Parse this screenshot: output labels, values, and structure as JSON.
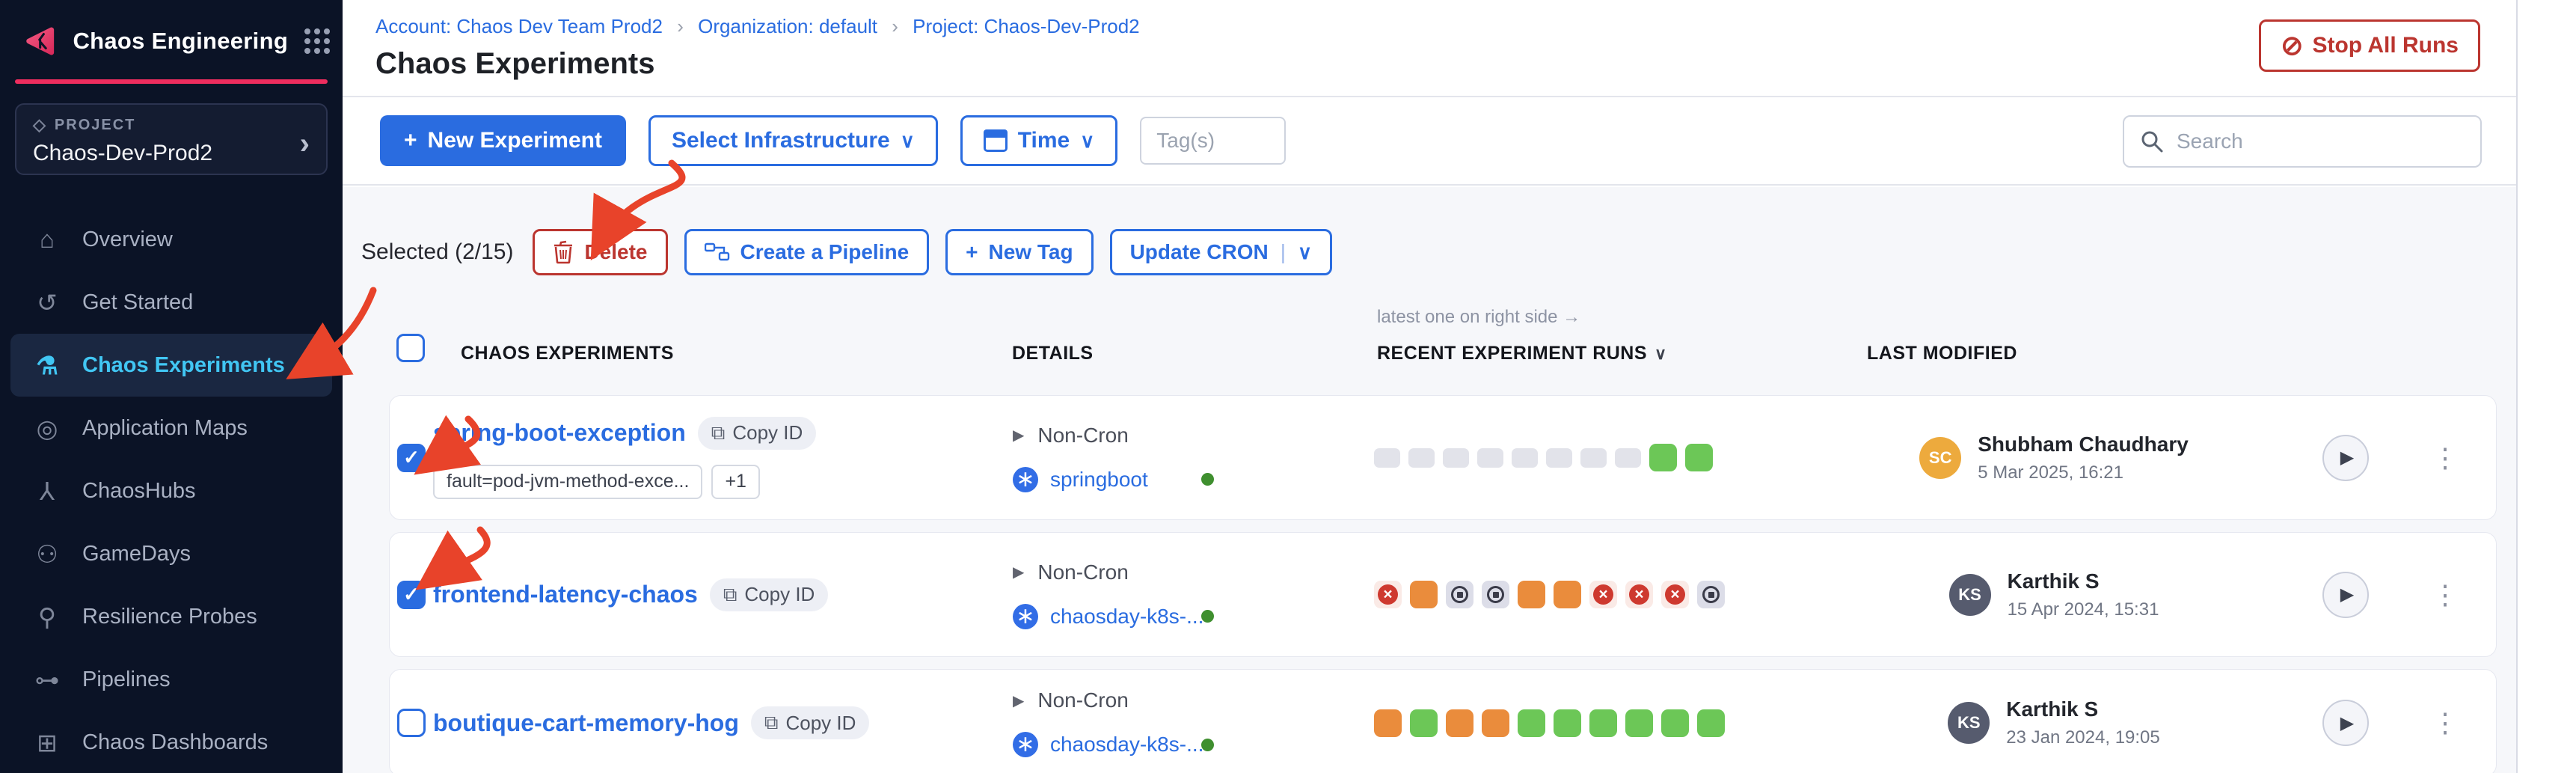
{
  "colors": {
    "primary_blue": "#2a6ce0",
    "sidebar_bg": "#0b1326",
    "pink_accent": "#ee2d5e",
    "active_nav": "#41c6f3",
    "danger_red": "#bb352f",
    "annotation_red": "#e8432a",
    "run_passed": "#6cc757",
    "run_running": "#ea8c3c",
    "run_failed": "#ce392f"
  },
  "icons": {
    "plus": "+",
    "chevron_down": "∨",
    "breadcrumb_sep": "›",
    "stop": "⊘",
    "copy": "⧉",
    "play": "▶",
    "menu_dots": "⋮",
    "check": "✓",
    "k8s_asterisk": "∗",
    "divider": "|",
    "project_cube": "◇",
    "project_chevron": "›",
    "cron_play": "▶"
  },
  "sidebar": {
    "product": "Chaos Engineering",
    "project_label": "PROJECT",
    "project_name": "Chaos-Dev-Prod2",
    "items": [
      {
        "name": "overview",
        "glyph": "⌂",
        "label": "Overview",
        "active": false
      },
      {
        "name": "get-started",
        "glyph": "↺",
        "label": "Get Started",
        "active": false
      },
      {
        "name": "chaos-experiments",
        "glyph": "⚗",
        "label": "Chaos Experiments",
        "active": true
      },
      {
        "name": "application-maps",
        "glyph": "◎",
        "label": "Application Maps",
        "active": false
      },
      {
        "name": "chaoshubs",
        "glyph": "⅄",
        "label": "ChaosHubs",
        "active": false
      },
      {
        "name": "gamedays",
        "glyph": "⚇",
        "label": "GameDays",
        "active": false
      },
      {
        "name": "resilience-probes",
        "glyph": "⚲",
        "label": "Resilience Probes",
        "active": false
      },
      {
        "name": "pipelines",
        "glyph": "⊶",
        "label": "Pipelines",
        "active": false
      },
      {
        "name": "chaos-dashboards",
        "glyph": "⊞",
        "label": "Chaos Dashboards",
        "active": false
      }
    ]
  },
  "breadcrumb": {
    "account": "Account: Chaos Dev Team Prod2",
    "organization": "Organization: default",
    "project": "Project: Chaos-Dev-Prod2"
  },
  "header": {
    "title": "Chaos Experiments",
    "stop_all_label": "Stop All Runs"
  },
  "toolbar": {
    "new_experiment_label": "New Experiment",
    "select_infrastructure_label": "Select Infrastructure",
    "time_label": "Time",
    "tags_placeholder": "Tag(s)",
    "search_placeholder": "Search"
  },
  "selection": {
    "label": "Selected (2/15)",
    "delete_label": "Delete",
    "create_pipeline_label": "Create a Pipeline",
    "new_tag_label": "New Tag",
    "update_cron_label": "Update CRON"
  },
  "table": {
    "runs_note": "latest one on right side →",
    "headers": {
      "experiments": "CHAOS EXPERIMENTS",
      "details": "DETAILS",
      "runs": "RECENT EXPERIMENT RUNS",
      "modified": "LAST MODIFIED"
    }
  },
  "rows": [
    {
      "name": "spring-boot-exception",
      "copy_label": "Copy ID",
      "checked": true,
      "tags": [
        "fault=pod-jvm-method-exce...",
        "+1"
      ],
      "cron": "Non-Cron",
      "infra": "springboot",
      "runs": [
        "none",
        "none",
        "none",
        "none",
        "none",
        "none",
        "none",
        "none",
        "passed",
        "passed"
      ],
      "modified_by": "Shubham Chaudhary",
      "initials": "SC",
      "avatar_color": "#edaa3d",
      "date": "5 Mar 2025, 16:21"
    },
    {
      "name": "frontend-latency-chaos",
      "copy_label": "Copy ID",
      "checked": true,
      "tags": [],
      "cron": "Non-Cron",
      "infra": "chaosday-k8s-...",
      "runs": [
        "failed",
        "running",
        "stopped",
        "stopped",
        "running",
        "running",
        "failed",
        "failed",
        "failed",
        "stopped"
      ],
      "modified_by": "Karthik S",
      "initials": "KS",
      "avatar_color": "#565b6e",
      "date": "15 Apr 2024, 15:31"
    },
    {
      "name": "boutique-cart-memory-hog",
      "copy_label": "Copy ID",
      "checked": false,
      "tags": [],
      "cron": "Non-Cron",
      "infra": "chaosday-k8s-...",
      "runs": [
        "running",
        "passed",
        "running",
        "running",
        "passed",
        "passed",
        "passed",
        "passed",
        "passed",
        "passed"
      ],
      "modified_by": "Karthik S",
      "initials": "KS",
      "avatar_color": "#565b6e",
      "date": "23 Jan 2024, 19:05"
    }
  ]
}
